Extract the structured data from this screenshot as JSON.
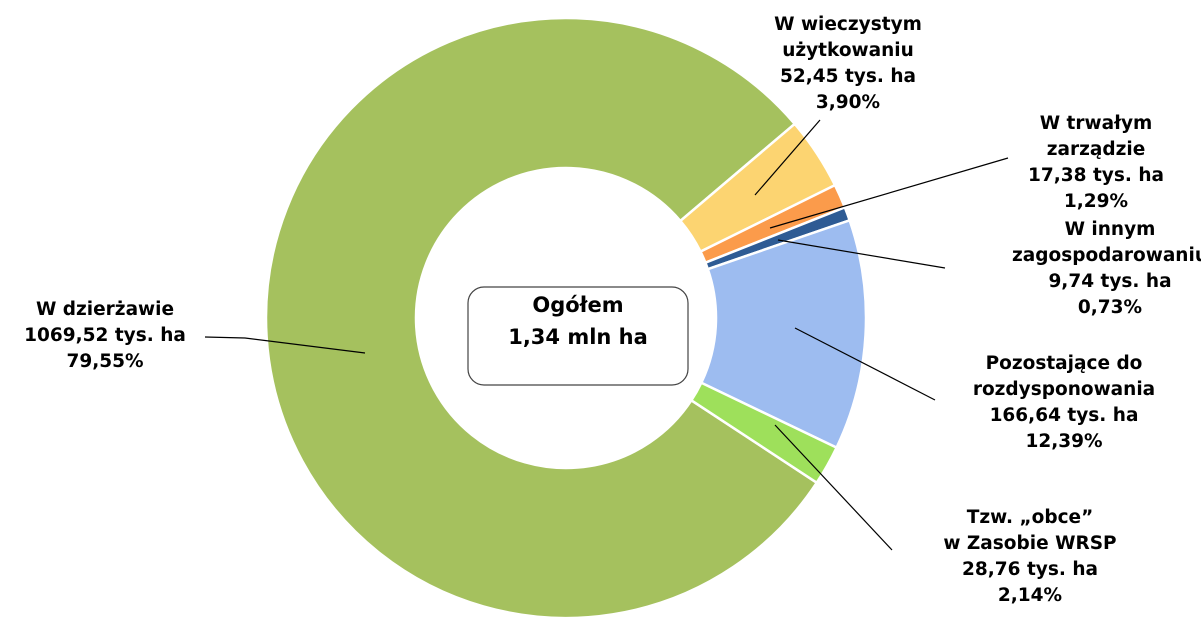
{
  "chart_data": {
    "type": "donut",
    "center_label": [
      "Ogółem",
      "1,34 mln ha"
    ],
    "categories": [
      [
        "W dzierżawie"
      ],
      [
        "W wieczystym",
        "użytkowaniu"
      ],
      [
        "W trwałym",
        "zarządzie"
      ],
      [
        "W innym",
        "zagospodarowaniu"
      ],
      [
        "Pozostające do",
        "rozdysponowania"
      ],
      [
        "Tzw. „obce”",
        "w Zasobie WRSP"
      ]
    ],
    "areas": [
      1069.52,
      52.45,
      17.38,
      9.74,
      166.64,
      28.76
    ],
    "area_labels": [
      "1069,52 tys. ha",
      "52,45 tys. ha",
      "17,38 tys. ha",
      "9,74 tys. ha",
      "166,64 tys. ha",
      "28,76 tys. ha"
    ],
    "values": [
      79.55,
      3.9,
      1.29,
      0.73,
      12.39,
      2.14
    ],
    "value_labels": [
      "79,55%",
      "3,90%",
      "1,29%",
      "0,73%",
      "12,39%",
      "2,14%"
    ],
    "colors": [
      "#a5c15e",
      "#fcd471",
      "#fb9b4b",
      "#2e5b94",
      "#9dbcf0",
      "#9ee05b"
    ]
  }
}
